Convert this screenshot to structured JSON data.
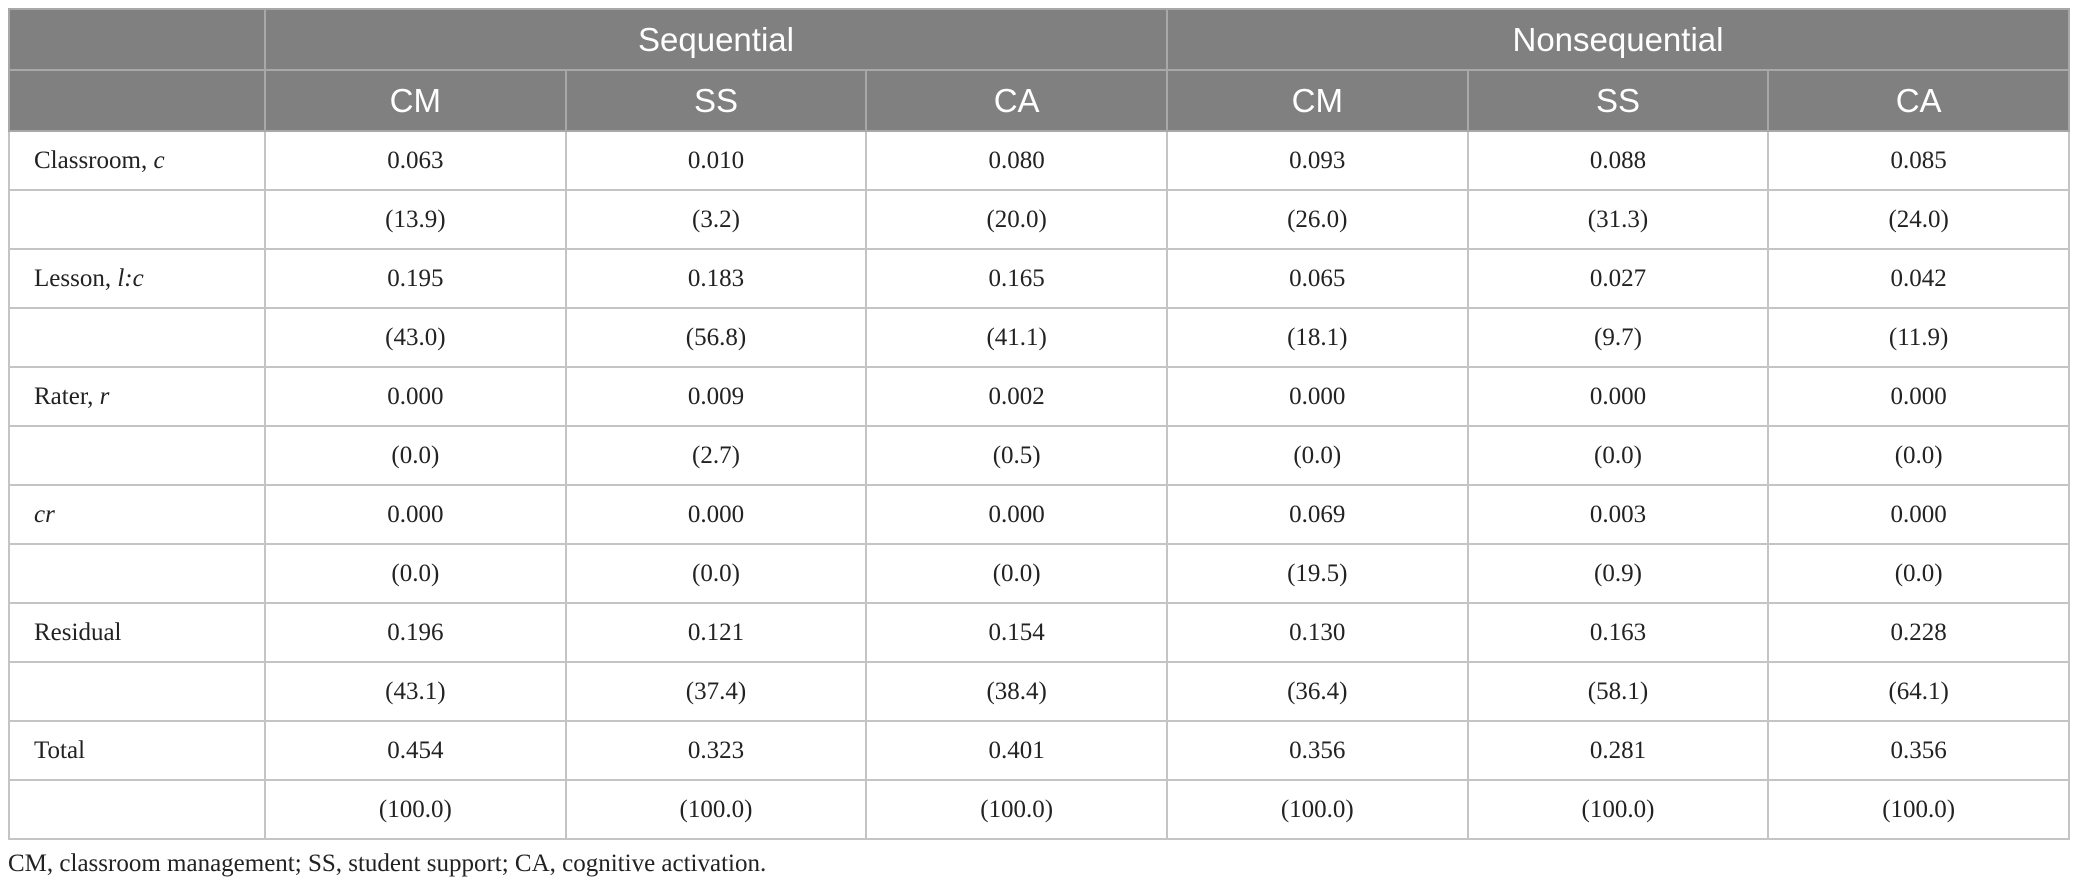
{
  "table": {
    "groups": [
      {
        "title": "Sequential",
        "columns": [
          "CM",
          "SS",
          "CA"
        ]
      },
      {
        "title": "Nonsequential",
        "columns": [
          "CM",
          "SS",
          "CA"
        ]
      }
    ],
    "rows": [
      {
        "label": [
          {
            "text": "Classroom, "
          },
          {
            "text": "c",
            "italic": true
          }
        ],
        "values": [
          "0.063",
          "0.010",
          "0.080",
          "0.093",
          "0.088",
          "0.085"
        ]
      },
      {
        "values": [
          "(13.9)",
          "(3.2)",
          "(20.0)",
          "(26.0)",
          "(31.3)",
          "(24.0)"
        ]
      },
      {
        "label": [
          {
            "text": "Lesson, "
          },
          {
            "text": "l:c",
            "italic": true
          }
        ],
        "values": [
          "0.195",
          "0.183",
          "0.165",
          "0.065",
          "0.027",
          "0.042"
        ]
      },
      {
        "values": [
          "(43.0)",
          "(56.8)",
          "(41.1)",
          "(18.1)",
          "(9.7)",
          "(11.9)"
        ]
      },
      {
        "label": [
          {
            "text": "Rater, "
          },
          {
            "text": "r",
            "italic": true
          }
        ],
        "values": [
          "0.000",
          "0.009",
          "0.002",
          "0.000",
          "0.000",
          "0.000"
        ]
      },
      {
        "values": [
          "(0.0)",
          "(2.7)",
          "(0.5)",
          "(0.0)",
          "(0.0)",
          "(0.0)"
        ]
      },
      {
        "label": [
          {
            "text": "cr",
            "italic": true
          }
        ],
        "values": [
          "0.000",
          "0.000",
          "0.000",
          "0.069",
          "0.003",
          "0.000"
        ]
      },
      {
        "values": [
          "(0.0)",
          "(0.0)",
          "(0.0)",
          "(19.5)",
          "(0.9)",
          "(0.0)"
        ]
      },
      {
        "label": [
          {
            "text": "Residual"
          }
        ],
        "values": [
          "0.196",
          "0.121",
          "0.154",
          "0.130",
          "0.163",
          "0.228"
        ]
      },
      {
        "values": [
          "(43.1)",
          "(37.4)",
          "(38.4)",
          "(36.4)",
          "(58.1)",
          "(64.1)"
        ]
      },
      {
        "label": [
          {
            "text": "Total"
          }
        ],
        "values": [
          "0.454",
          "0.323",
          "0.401",
          "0.356",
          "0.281",
          "0.356"
        ]
      },
      {
        "values": [
          "(100.0)",
          "(100.0)",
          "(100.0)",
          "(100.0)",
          "(100.0)",
          "(100.0)"
        ]
      }
    ]
  },
  "footnote": "CM, classroom management; SS, student support; CA, cognitive activation."
}
